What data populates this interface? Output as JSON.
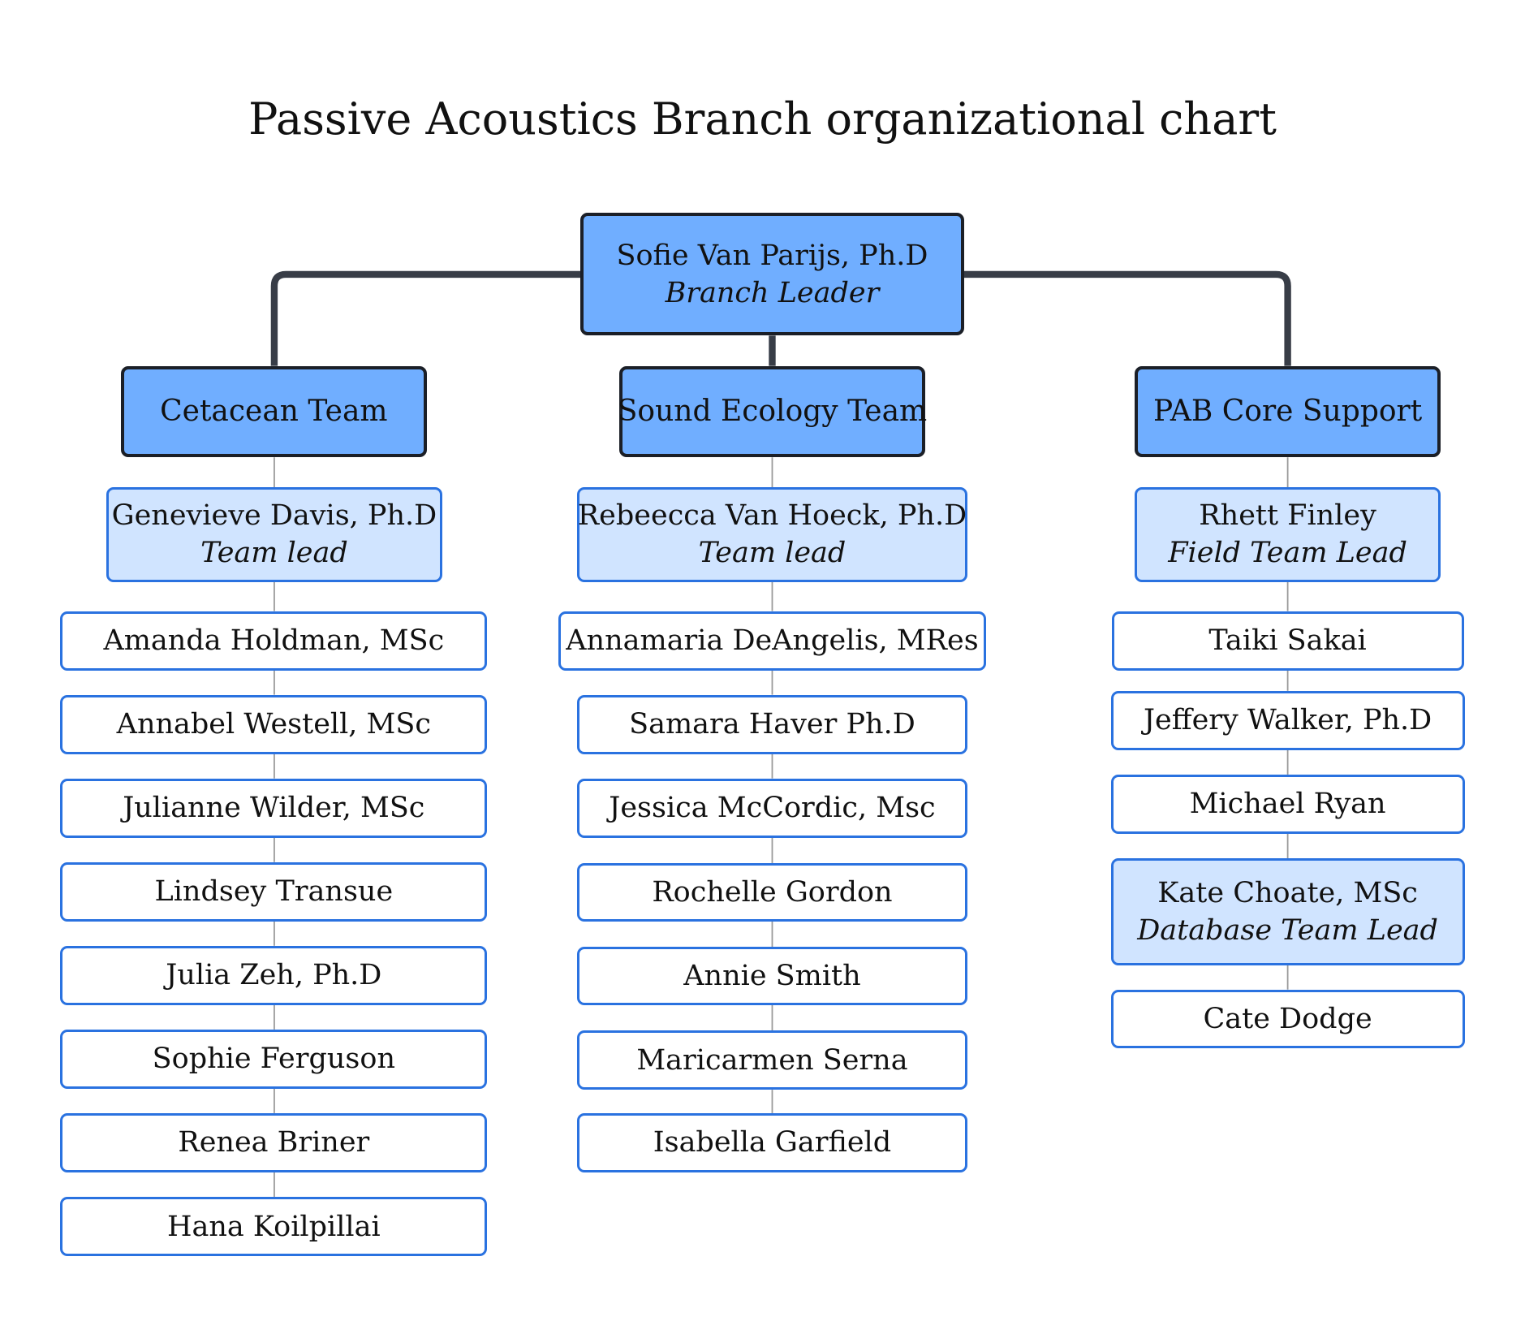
{
  "title": "Passive Acoustics Branch organizational chart",
  "branch_leader": {
    "name": "Sofie Van Parijs, Ph.D",
    "role": "Branch Leader"
  },
  "teams": [
    {
      "name": "Cetacean Team",
      "lead": {
        "name": "Genevieve Davis, Ph.D",
        "role": "Team lead"
      },
      "members": [
        {
          "name": "Amanda Holdman, MSc"
        },
        {
          "name": "Annabel Westell, MSc"
        },
        {
          "name": "Julianne Wilder, MSc"
        },
        {
          "name": "Lindsey Transue"
        },
        {
          "name": "Julia Zeh, Ph.D"
        },
        {
          "name": "Sophie Ferguson"
        },
        {
          "name": "Renea Briner"
        },
        {
          "name": "Hana Koilpillai"
        }
      ]
    },
    {
      "name": "Sound Ecology Team",
      "lead": {
        "name": "Rebeecca Van Hoeck, Ph.D",
        "role": "Team lead"
      },
      "members": [
        {
          "name": "Annamaria DeAngelis, MRes"
        },
        {
          "name": "Samara Haver Ph.D"
        },
        {
          "name": "Jessica McCordic, Msc"
        },
        {
          "name": "Rochelle Gordon"
        },
        {
          "name": "Annie Smith"
        },
        {
          "name": "Maricarmen Serna"
        },
        {
          "name": "Isabella Garfield"
        }
      ]
    },
    {
      "name": "PAB Core Support",
      "lead": {
        "name": "Rhett Finley",
        "role": "Field Team Lead"
      },
      "members": [
        {
          "name": "Taiki Sakai"
        },
        {
          "name": "Jeffery Walker, Ph.D"
        },
        {
          "name": "Michael Ryan"
        },
        {
          "name": "Kate Choate, MSc",
          "role": "Database Team Lead"
        },
        {
          "name": "Cate Dodge"
        }
      ]
    }
  ],
  "colors": {
    "header_fill": "#70aeff",
    "header_border": "#1b1f27",
    "lead_fill": "#d0e4ff",
    "member_fill": "#ffffff",
    "box_border": "#2a72e0",
    "main_connector": "#383d47",
    "thin_connector": "#9a9a9a"
  }
}
